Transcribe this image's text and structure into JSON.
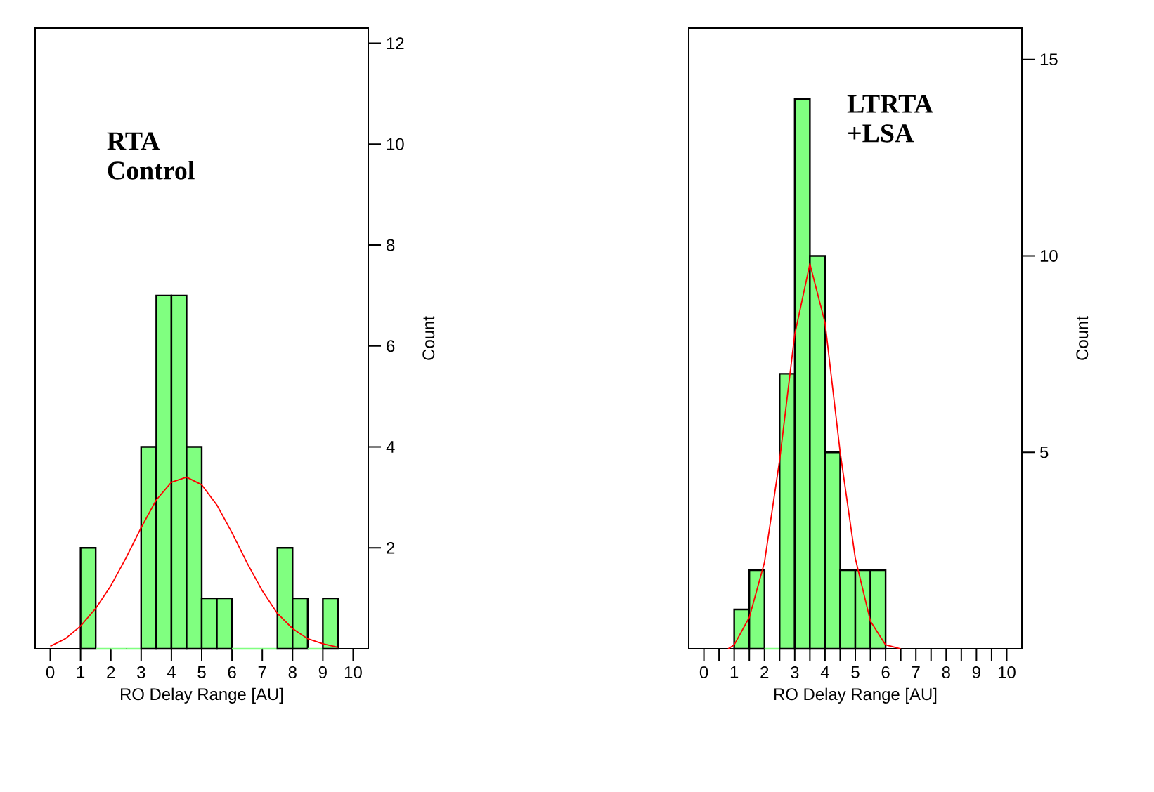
{
  "chart_data": [
    {
      "type": "histogram",
      "xlabel": "RO Delay Range [AU]",
      "ylabel": "Count",
      "annotations": [
        "RTA Control"
      ],
      "xlim": [
        -0.5,
        10.5
      ],
      "ylim": [
        0,
        12.3
      ],
      "xticks": [
        0,
        1,
        2,
        3,
        4,
        5,
        6,
        7,
        8,
        9,
        10
      ],
      "yticks": [
        2,
        4,
        6,
        8,
        10,
        12
      ],
      "series": [
        {
          "color": "#80ff80",
          "bins": [
            1,
            1.5,
            2,
            2.5,
            3,
            3.5,
            4,
            4.5,
            5,
            5.5,
            6,
            6.5,
            7,
            7.5,
            8,
            8.5,
            9,
            9.5
          ],
          "values": [
            2,
            0,
            0,
            0,
            4,
            7,
            7,
            4,
            1,
            1,
            0,
            0,
            0,
            2,
            1,
            0,
            1
          ]
        },
        {
          "type": "line",
          "color": "#ff0000",
          "x": [
            0,
            0.5,
            1,
            1.5,
            2,
            2.5,
            3,
            3.5,
            4,
            4.5,
            5,
            5.5,
            6,
            6.5,
            7,
            7.5,
            8,
            8.5,
            9,
            9.5
          ],
          "values": [
            0.05,
            0.2,
            0.45,
            0.8,
            1.25,
            1.8,
            2.4,
            2.95,
            3.3,
            3.4,
            3.25,
            2.85,
            2.3,
            1.7,
            1.15,
            0.7,
            0.4,
            0.2,
            0.1,
            0.03
          ]
        }
      ]
    },
    {
      "type": "histogram",
      "xlabel": "RO Delay Range [AU]",
      "ylabel": "Count",
      "annotations": [
        "LTRTA +LSA"
      ],
      "xlim": [
        -0.5,
        10.5
      ],
      "ylim": [
        0,
        15.8
      ],
      "xticks": [
        0,
        {
          "value": 0.5,
          "label": null
        },
        1,
        {
          "value": 1.5,
          "label": null
        },
        2,
        {
          "value": 2.5,
          "label": null
        },
        3,
        {
          "value": 3.5,
          "label": null
        },
        4,
        {
          "value": 4.5,
          "label": null
        },
        5,
        {
          "value": 5.5,
          "label": null
        },
        6,
        {
          "value": 6.5,
          "label": null
        },
        7,
        {
          "value": 7.5,
          "label": null
        },
        8,
        {
          "value": 8.5,
          "label": null
        },
        9,
        {
          "value": 9.5,
          "label": null
        },
        10
      ],
      "yticks": [
        5,
        10,
        15
      ],
      "series": [
        {
          "color": "#80ff80",
          "bins": [
            1,
            1.5,
            2,
            2.5,
            3,
            3.5,
            4,
            4.5,
            5,
            5.5,
            6
          ],
          "values": [
            1,
            2,
            0,
            7,
            14,
            10,
            5,
            2,
            2,
            2
          ]
        },
        {
          "type": "line",
          "color": "#ff0000",
          "x": [
            0.8,
            1,
            1.5,
            2,
            2.5,
            3,
            3.5,
            4,
            4.5,
            5,
            5.5,
            6,
            6.5
          ],
          "values": [
            0,
            0.1,
            0.8,
            2.2,
            4.8,
            8,
            9.8,
            8.3,
            5,
            2.3,
            0.7,
            0.1,
            0
          ]
        }
      ]
    }
  ]
}
